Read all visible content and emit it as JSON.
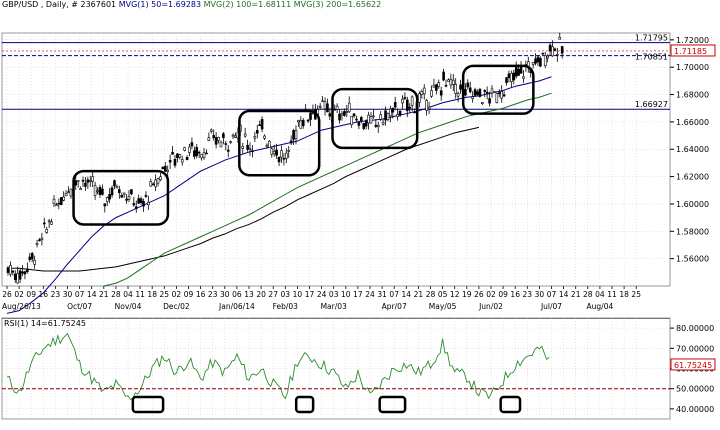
{
  "header": {
    "symbol": "GBP/USD , Daily, # 2367601",
    "mvg1": "MVG(1) 50=1.69283",
    "mvg2": "MVG(2) 100=1.68111",
    "mvg3": "MVG(3) 200=1.65622"
  },
  "colors": {
    "background": "#ffffff",
    "grid": "#c8c8c8",
    "candle": "#000000",
    "ma50": "#00008b",
    "ma100": "#1f6f1f",
    "ma200": "#000000",
    "rsi_line": "#2e8b2e",
    "hline": "#000080",
    "rsi_ref": "#8b0000",
    "last_price_box": "#cc0000",
    "boxes": "#000000"
  },
  "chart_data": [
    {
      "type": "candlestick",
      "name": "price",
      "ylim": [
        1.54,
        1.725
      ],
      "y_ticks": [
        {
          "value": 1.56,
          "label": "1.56000"
        },
        {
          "value": 1.58,
          "label": "1.58000"
        },
        {
          "value": 1.6,
          "label": "1.60000"
        },
        {
          "value": 1.62,
          "label": "1.62000"
        },
        {
          "value": 1.64,
          "label": "1.64000"
        },
        {
          "value": 1.66,
          "label": "1.66000"
        },
        {
          "value": 1.68,
          "label": "1.68000"
        },
        {
          "value": 1.7,
          "label": "1.70000"
        },
        {
          "value": 1.72,
          "label": "1.72000"
        }
      ],
      "price_labels": [
        {
          "value": 1.71795,
          "label": "1.71795"
        },
        {
          "value": 1.7085,
          "label": "1.70851"
        },
        {
          "value": 1.66927,
          "label": "1.66927"
        }
      ],
      "last_price": {
        "value": 1.71185,
        "label": "1.71185"
      },
      "x_day_labels": [
        "26",
        "02",
        "09",
        "16",
        "23",
        "30",
        "07",
        "14",
        "21",
        "28",
        "04",
        "11",
        "18",
        "25",
        "02",
        "09",
        "16",
        "23",
        "30",
        "06",
        "13",
        "20",
        "27",
        "03",
        "10",
        "17",
        "24",
        "03",
        "10",
        "17",
        "24",
        "31",
        "07",
        "14",
        "21",
        "28",
        "05",
        "12",
        "19",
        "26",
        "02",
        "09",
        "16",
        "23",
        "30",
        "07",
        "14",
        "21",
        "28",
        "04",
        "11",
        "18",
        "25"
      ],
      "x_month_labels": [
        {
          "index": 0,
          "label": "Aug/26/13"
        },
        {
          "index": 6,
          "label": "Oct/07"
        },
        {
          "index": 10,
          "label": "Nov/04"
        },
        {
          "index": 14,
          "label": "Dec/02"
        },
        {
          "index": 19,
          "label": "Jan/06/14"
        },
        {
          "index": 23,
          "label": "Feb/03"
        },
        {
          "index": 27,
          "label": "Mar/03"
        },
        {
          "index": 32,
          "label": "Apr/07"
        },
        {
          "index": 36,
          "label": "May/05"
        },
        {
          "index": 40,
          "label": "Jun/02"
        },
        {
          "index": 45,
          "label": "Jul/07"
        },
        {
          "index": 49,
          "label": "Aug/04"
        }
      ],
      "closes_weekly": [
        1.553,
        1.548,
        1.56,
        1.578,
        1.6,
        1.612,
        1.618,
        1.612,
        1.603,
        1.615,
        1.605,
        1.598,
        1.612,
        1.628,
        1.635,
        1.64,
        1.638,
        1.648,
        1.645,
        1.652,
        1.643,
        1.655,
        1.64,
        1.632,
        1.66,
        1.668,
        1.67,
        1.665,
        1.668,
        1.662,
        1.658,
        1.662,
        1.668,
        1.672,
        1.675,
        1.678,
        1.69,
        1.685,
        1.682,
        1.68,
        1.678,
        1.685,
        1.694,
        1.7,
        1.705,
        1.716,
        1.712
      ],
      "ma50_weekly": [
        1.52,
        1.522,
        1.528,
        1.535,
        1.545,
        1.556,
        1.566,
        1.576,
        1.584,
        1.59,
        1.594,
        1.598,
        1.602,
        1.606,
        1.612,
        1.618,
        1.624,
        1.628,
        1.632,
        1.635,
        1.638,
        1.64,
        1.642,
        1.644,
        1.646,
        1.65,
        1.654,
        1.656,
        1.658,
        1.66,
        1.661,
        1.662,
        1.664,
        1.666,
        1.668,
        1.671,
        1.674,
        1.676,
        1.678,
        1.679,
        1.681,
        1.683,
        1.686,
        1.688,
        1.69,
        1.693
      ],
      "ma100_weekly": [
        1.54,
        1.542,
        1.546,
        1.552,
        1.558,
        1.564,
        1.568,
        1.572,
        1.576,
        1.58,
        1.584,
        1.588,
        1.592,
        1.597,
        1.602,
        1.607,
        1.612,
        1.616,
        1.62,
        1.624,
        1.628,
        1.632,
        1.636,
        1.64,
        1.644,
        1.648,
        1.652,
        1.655,
        1.658,
        1.661,
        1.664,
        1.666,
        1.668,
        1.67,
        1.673,
        1.676,
        1.678,
        1.681
      ],
      "ma200_weekly": [
        1.553,
        1.553,
        1.552,
        1.551,
        1.551,
        1.551,
        1.551,
        1.552,
        1.553,
        1.554,
        1.556,
        1.558,
        1.56,
        1.562,
        1.565,
        1.568,
        1.571,
        1.575,
        1.578,
        1.582,
        1.585,
        1.589,
        1.594,
        1.598,
        1.603,
        1.607,
        1.611,
        1.615,
        1.62,
        1.624,
        1.628,
        1.632,
        1.636,
        1.64,
        1.643,
        1.646,
        1.649,
        1.652,
        1.654,
        1.656
      ]
    },
    {
      "type": "line",
      "name": "RSI(1) 14=61.75245",
      "ylim": [
        35,
        85
      ],
      "y_ticks": [
        {
          "value": 40,
          "label": "40.00000"
        },
        {
          "value": 50,
          "label": "50.00000"
        },
        {
          "value": 60,
          "label": "60.00000"
        },
        {
          "value": 70,
          "label": "70.00000"
        },
        {
          "value": 80,
          "label": "80.00000"
        }
      ],
      "reference_line": 50,
      "last_value": {
        "value": 61.75245,
        "label": "61.75245"
      },
      "values_weekly": [
        55,
        48,
        62,
        70,
        74,
        77,
        62,
        55,
        48,
        52,
        45,
        50,
        60,
        66,
        58,
        64,
        55,
        63,
        58,
        66,
        55,
        60,
        52,
        46,
        64,
        66,
        62,
        58,
        50,
        57,
        46,
        53,
        60,
        62,
        58,
        62,
        72,
        58,
        56,
        48,
        46,
        54,
        62,
        66,
        70,
        62
      ]
    }
  ]
}
